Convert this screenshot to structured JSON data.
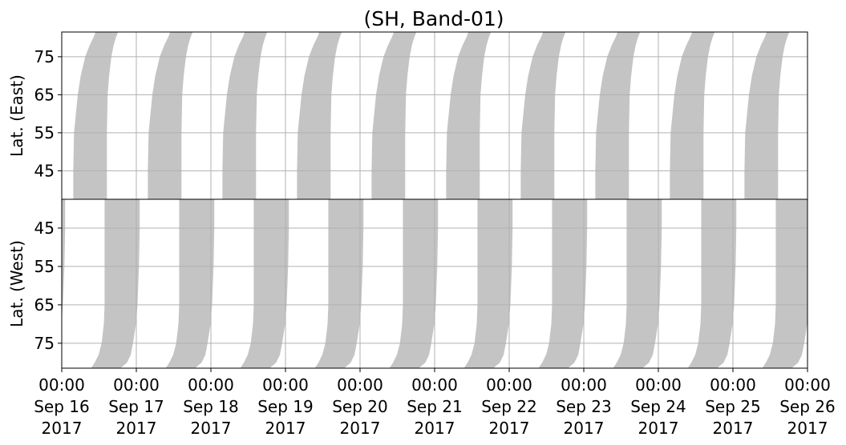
{
  "chart_data": [
    {
      "type": "band",
      "title": "(SH, Band-01)",
      "ylabel": "Lat. (East)",
      "ylim": [
        37.5,
        81.5
      ],
      "inverted": false,
      "yticks": [
        45,
        55,
        65,
        75
      ],
      "xlim": [
        0,
        10
      ],
      "grid": true,
      "color": "#c4c4c4",
      "lat": [
        37.5,
        45,
        55,
        65,
        70,
        75,
        78,
        80,
        81.5
      ],
      "left": [
        0.16,
        0.16,
        0.17,
        0.22,
        0.26,
        0.32,
        0.38,
        0.43,
        0.46
      ],
      "right": [
        0.6,
        0.6,
        0.6,
        0.61,
        0.63,
        0.66,
        0.69,
        0.72,
        0.75
      ],
      "starts": [
        0,
        1,
        2,
        3,
        4,
        5,
        6,
        7,
        8,
        9
      ]
    },
    {
      "type": "band",
      "ylabel": "Lat. (West)",
      "ylim": [
        37.5,
        81.5
      ],
      "inverted": true,
      "yticks": [
        45,
        55,
        65,
        75
      ],
      "xlim": [
        0,
        10
      ],
      "grid": true,
      "color": "#c4c4c4",
      "lat": [
        81.5,
        80,
        78,
        75,
        70,
        65,
        55,
        45,
        37.5
      ],
      "left": [
        0.4,
        0.45,
        0.5,
        0.54,
        0.57,
        0.58,
        0.58,
        0.58,
        0.58
      ],
      "right": [
        0.78,
        0.87,
        0.92,
        0.95,
        0.99,
        1.01,
        1.03,
        1.04,
        1.04
      ],
      "starts": [
        -1,
        0,
        1,
        2,
        3,
        4,
        5,
        6,
        7,
        8,
        9
      ],
      "xticks": [
        {
          "value": 0,
          "label": "00:00\nSep 16\n2017"
        },
        {
          "value": 1,
          "label": "00:00\nSep 17\n2017"
        },
        {
          "value": 2,
          "label": "00:00\nSep 18\n2017"
        },
        {
          "value": 3,
          "label": "00:00\nSep 19\n2017"
        },
        {
          "value": 4,
          "label": "00:00\nSep 20\n2017"
        },
        {
          "value": 5,
          "label": "00:00\nSep 21\n2017"
        },
        {
          "value": 6,
          "label": "00:00\nSep 22\n2017"
        },
        {
          "value": 7,
          "label": "00:00\nSep 23\n2017"
        },
        {
          "value": 8,
          "label": "00:00\nSep 24\n2017"
        },
        {
          "value": 9,
          "label": "00:00\nSep 25\n2017"
        },
        {
          "value": 10,
          "label": "00:00\nSep 26\n2017"
        }
      ]
    }
  ]
}
